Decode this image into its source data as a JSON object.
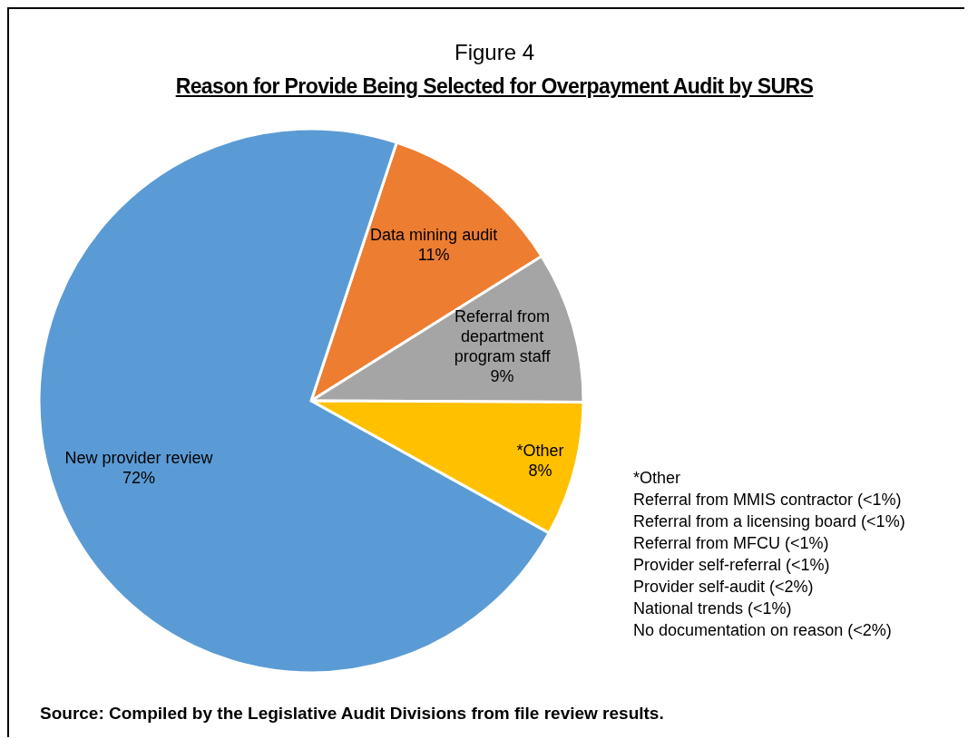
{
  "chart_data": {
    "type": "pie",
    "title": "Figure 4",
    "subtitle": "Reason for Provide Being Selected for Overpayment Audit by SURS",
    "categories": [
      "Data mining audit",
      "Referral from department program staff",
      "*Other",
      "New provider review"
    ],
    "values": [
      11,
      9,
      8,
      72
    ],
    "value_labels": [
      "11%",
      "9%",
      "8%",
      "72%"
    ],
    "colors": [
      "#ed7d31",
      "#a5a5a5",
      "#ffc000",
      "#5b9bd5"
    ],
    "annotations": [
      "*Other",
      "Referral from MMIS contractor (<1%)",
      "Referral from a licensing board (<1%)",
      "Referral from MFCU (<1%)",
      "Provider self-referral (<1%)",
      "Provider self-audit (<2%)",
      "National trends (<1%)",
      "No documentation on reason (<2%)",
      "Source: Compiled by the Legislative Audit Divisions from file review results."
    ]
  }
}
